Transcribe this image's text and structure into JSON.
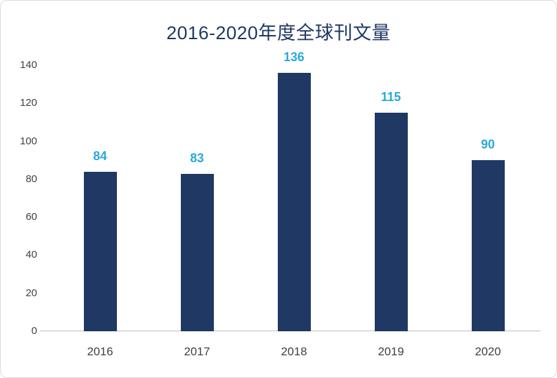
{
  "chart_data": {
    "type": "bar",
    "title": "2016-2020年度全球刊文量",
    "categories": [
      "2016",
      "2017",
      "2018",
      "2019",
      "2020"
    ],
    "values": [
      84,
      83,
      136,
      115,
      90
    ],
    "xlabel": "",
    "ylabel": "",
    "ylim": [
      0,
      140
    ],
    "ytick_step": 20,
    "grid": false,
    "legend_position": "none",
    "bar_color": "#1f3864",
    "value_label_color": "#29a8dc",
    "title_color": "#1f3864",
    "axis_text_color": "#404040",
    "axis_line_color": "#bfbfbf"
  }
}
